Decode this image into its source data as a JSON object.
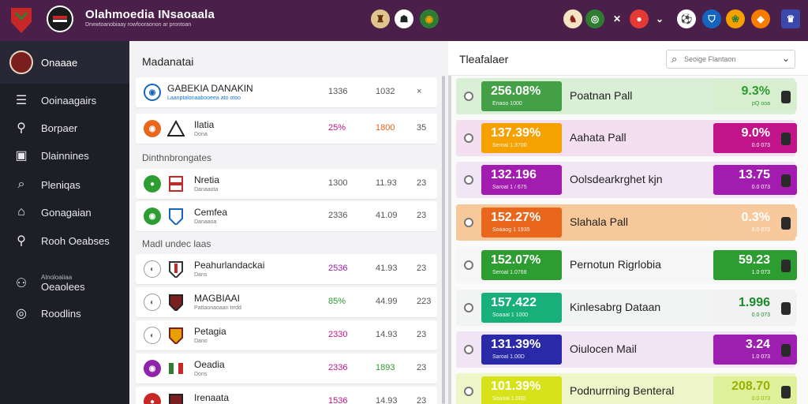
{
  "topbar": {
    "title": "Olahmoedia INsaoaala",
    "subtitle": "Drwwtoanobiaay  rowfooraonon  ar  prontoan"
  },
  "sidebar": {
    "header_label": "Onaaae",
    "items": [
      {
        "label": "Ooinaagairs",
        "icon": "list-icon"
      },
      {
        "label": "Borpaer",
        "icon": "person-icon"
      },
      {
        "label": "Dlainnines",
        "icon": "table-icon"
      },
      {
        "label": "Pleniqas",
        "icon": "search-icon"
      },
      {
        "label": "Gonagaian",
        "icon": "home-icon"
      },
      {
        "label": "Rooh Oeabses",
        "icon": "location-icon"
      },
      {
        "label": "Oeaolees",
        "small": "Alnoloaiiaa",
        "icon": "people-icon"
      },
      {
        "label": "Roodlins",
        "icon": "compass-icon"
      }
    ]
  },
  "middle": {
    "title": "Madanatai",
    "top_row": {
      "name": "GABEKIA DANAKIN",
      "sub": "Laanptalonaabooeea   ato   otoo",
      "c1": "1336",
      "c2": "1032",
      "c3": "×"
    },
    "row_natia": {
      "name": "Ilatia",
      "sub": "Dona",
      "c1": "25%",
      "c2": "1800",
      "c3": "35"
    },
    "section1": "Dinthnbrongates",
    "rows_a": [
      {
        "name": "Nretia",
        "sub": "Danaaota",
        "c1": "1300",
        "c2": "11.93",
        "c3": "23"
      },
      {
        "name": "Cemfea",
        "sub": "Danaaoa",
        "c1": "2336",
        "c2": "41.09",
        "c3": "23"
      }
    ],
    "section2": "Madl undec laas",
    "rows_b": [
      {
        "name": "Peahurlandackai",
        "sub": "Dans",
        "c1": "2536",
        "c2": "41.93",
        "c3": "23"
      },
      {
        "name": "MAGBIAAI",
        "sub": "Pattaonaoaan  trrdd",
        "c1": "85%",
        "c2": "44.99",
        "c3": "223"
      },
      {
        "name": "Petagia",
        "sub": "Dano",
        "c1": "2330",
        "c2": "14.93",
        "c3": "23"
      },
      {
        "name": "Oeadia",
        "sub": "Dons",
        "c1": "2336",
        "c2": "1893",
        "c3": "23"
      },
      {
        "name": "Irenaata",
        "sub": "",
        "c1": "1536",
        "c2": "14.93",
        "c3": "23"
      }
    ]
  },
  "right": {
    "title": "Tleafalaer",
    "search_placeholder": "Seoige Flantaon",
    "cards": [
      {
        "pct": "256.08%",
        "psub": "Enaoo  1000",
        "name": "Poatnan Pall",
        "rv": "9.3%",
        "rsub": "pQ  ooa",
        "lp": "#43a047",
        "rp": "#d7efcf",
        "rvcol": "#2e9d31",
        "bg": "#d9efd6",
        "dot": "#1c8a2b"
      },
      {
        "pct": "137.39%",
        "psub": "Seroal  1.3700",
        "name": "Aahata Pall",
        "rv": "9.0%",
        "rsub": "0.0  073",
        "lp": "#f5a100",
        "rp": "#c2148a",
        "rvcol": "#ffffff",
        "bg": "#f3dff0",
        "dot": "#777"
      },
      {
        "pct": "132.196",
        "psub": "Saroal  1 / 675",
        "name": "Oolsdearkrghet kjn",
        "rv": "13.75",
        "rsub": "0.0  073",
        "lp": "#a21caf",
        "rp": "#a21caf",
        "rvcol": "#ffffff",
        "bg": "#f1e6f5",
        "dot": "#777"
      },
      {
        "pct": "152.27%",
        "psub": "Soaaog  1 1935",
        "name": "Slahala Pall",
        "rv": "0.3%",
        "rsub": "0.0  073",
        "lp": "#e8671c",
        "rp": "#f8c99c",
        "rvcol": "#ffffff",
        "bg": "#f7c99a",
        "dot": "#777"
      },
      {
        "pct": "152.07%",
        "psub": "Seroal  1.0768",
        "name": "Pernotun Rigrlobia",
        "rv": "59.23",
        "rsub": "1.0  073",
        "lp": "#2e9d31",
        "rp": "#2e9d31",
        "rvcol": "#ffffff",
        "bg": "#f5f6f5",
        "dot": "#777"
      },
      {
        "pct": "157.422",
        "psub": "Soaaal  1 1000",
        "name": "Kinlesabrg Dataan",
        "rv": "1.996",
        "rsub": "0.0  073",
        "lp": "#17b07a",
        "rp": "#f2f2f2",
        "rvcol": "#1b8a2b",
        "bg": "#f2f3f3",
        "dot": "#777"
      },
      {
        "pct": "131.39%",
        "psub": "Saroal  1.00D",
        "name": "Oiulocen Mail",
        "rv": "3.24",
        "rsub": "1.0  073",
        "lp": "#2a2aa8",
        "rp": "#9c1fb0",
        "rvcol": "#ffffff",
        "bg": "#f1e4f5",
        "dot": "#777"
      },
      {
        "pct": "101.39%",
        "psub": "Soaoal  1.00D",
        "name": "Podnurrning Benteral",
        "rv": "208.70",
        "rsub": "0.0  073",
        "lp": "#d7e21a",
        "rp": "#dff09a",
        "rvcol": "#9bb000",
        "bg": "#eef5c8",
        "dot": "#777"
      }
    ]
  }
}
